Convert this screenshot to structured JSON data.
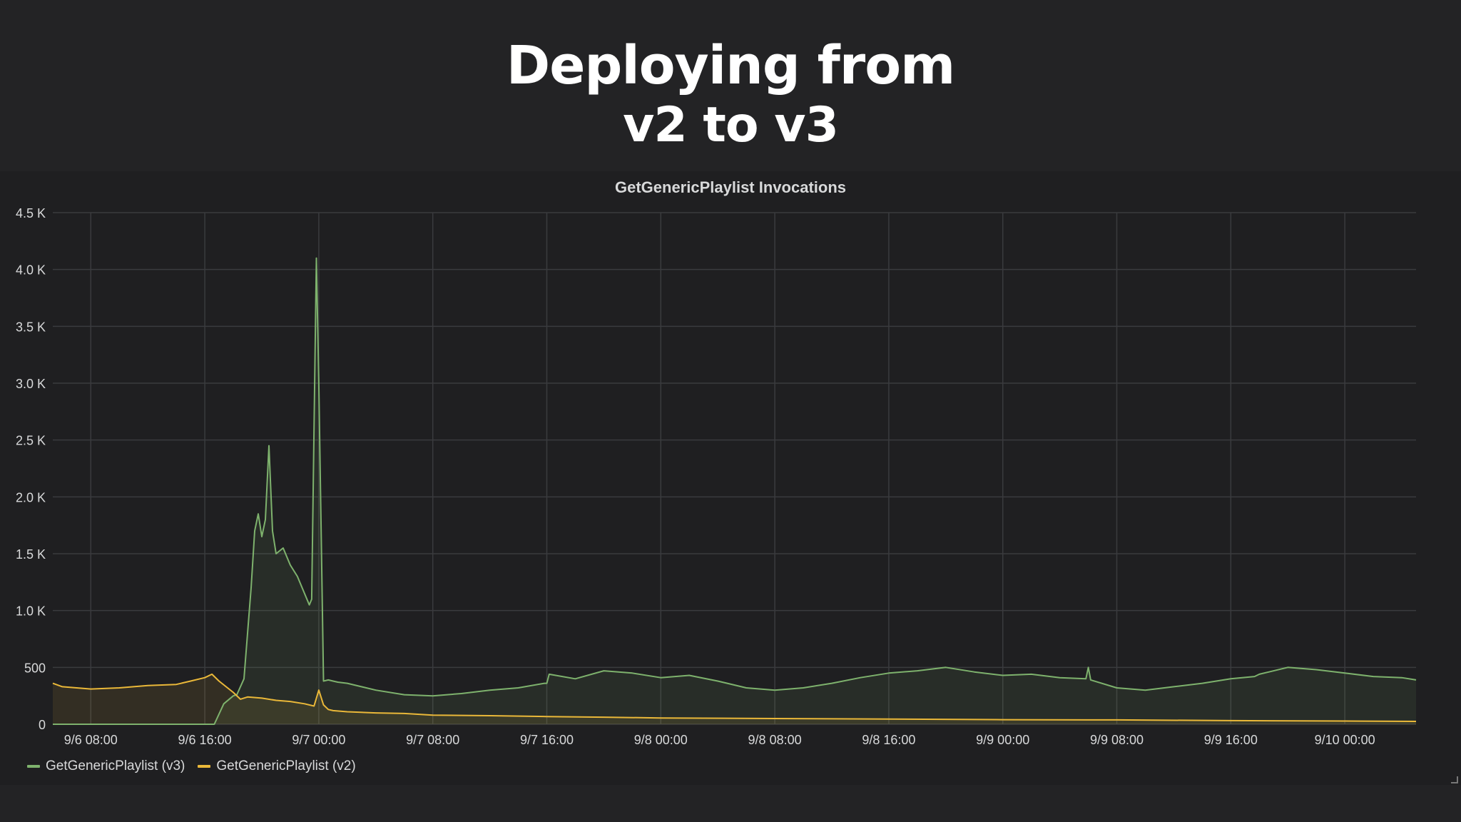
{
  "slide": {
    "title_line1": "Deploying from",
    "title_line2": "v2 to v3"
  },
  "chart_data": {
    "type": "line",
    "title": "GetGenericPlaylist Invocations",
    "xlabel": "",
    "ylabel": "",
    "ylim": [
      0,
      4500
    ],
    "xlim": [
      "9/6 05:20",
      "9/10 05:00"
    ],
    "yticks": [
      {
        "value": 0,
        "label": "0"
      },
      {
        "value": 500,
        "label": "500"
      },
      {
        "value": 1000,
        "label": "1.0 K"
      },
      {
        "value": 1500,
        "label": "1.5 K"
      },
      {
        "value": 2000,
        "label": "2.0 K"
      },
      {
        "value": 2500,
        "label": "2.5 K"
      },
      {
        "value": 3000,
        "label": "3.0 K"
      },
      {
        "value": 3500,
        "label": "3.5 K"
      },
      {
        "value": 4000,
        "label": "4.0 K"
      },
      {
        "value": 4500,
        "label": "4.5 K"
      }
    ],
    "xticks": [
      {
        "value": "9/6 08:00",
        "label": "9/6 08:00"
      },
      {
        "value": "9/6 16:00",
        "label": "9/6 16:00"
      },
      {
        "value": "9/7 00:00",
        "label": "9/7 00:00"
      },
      {
        "value": "9/7 08:00",
        "label": "9/7 08:00"
      },
      {
        "value": "9/7 16:00",
        "label": "9/7 16:00"
      },
      {
        "value": "9/8 00:00",
        "label": "9/8 00:00"
      },
      {
        "value": "9/8 08:00",
        "label": "9/8 08:00"
      },
      {
        "value": "9/8 16:00",
        "label": "9/8 16:00"
      },
      {
        "value": "9/9 00:00",
        "label": "9/9 00:00"
      },
      {
        "value": "9/9 08:00",
        "label": "9/9 08:00"
      },
      {
        "value": "9/9 16:00",
        "label": "9/9 16:00"
      },
      {
        "value": "9/10 00:00",
        "label": "9/10 00:00"
      }
    ],
    "grid": true,
    "legend_position": "bottom-left",
    "series": [
      {
        "name": "GetGenericPlaylist (v3)",
        "color": "#7eb26d",
        "x": [
          "9/6 05:20",
          "9/6 10:00",
          "9/6 16:00",
          "9/6 16:40",
          "9/6 17:20",
          "9/6 18:00",
          "9/6 18:15",
          "9/6 18:45",
          "9/6 19:15",
          "9/6 19:30",
          "9/6 19:45",
          "9/6 20:00",
          "9/6 20:15",
          "9/6 20:30",
          "9/6 20:45",
          "9/6 21:00",
          "9/6 21:30",
          "9/6 22:00",
          "9/6 22:30",
          "9/6 23:00",
          "9/6 23:20",
          "9/6 23:30",
          "9/6 23:50",
          "9/7 00:00",
          "9/7 00:20",
          "9/7 00:40",
          "9/7 01:00",
          "9/7 01:20",
          "9/7 02:00",
          "9/7 04:00",
          "9/7 06:00",
          "9/7 08:00",
          "9/7 10:00",
          "9/7 12:00",
          "9/7 14:00",
          "9/7 15:50",
          "9/7 16:00",
          "9/7 16:10",
          "9/7 18:00",
          "9/7 20:00",
          "9/7 22:00",
          "9/8 00:00",
          "9/8 02:00",
          "9/8 04:00",
          "9/8 06:00",
          "9/8 08:00",
          "9/8 10:00",
          "9/8 12:00",
          "9/8 14:00",
          "9/8 16:00",
          "9/8 18:00",
          "9/8 20:00",
          "9/8 22:00",
          "9/9 00:00",
          "9/9 02:00",
          "9/9 04:00",
          "9/9 05:50",
          "9/9 06:00",
          "9/9 06:10",
          "9/9 08:00",
          "9/9 10:00",
          "9/9 12:00",
          "9/9 14:00",
          "9/9 16:00",
          "9/9 17:40",
          "9/9 18:00",
          "9/9 20:00",
          "9/9 22:00",
          "9/10 00:00",
          "9/10 02:00",
          "9/10 04:00",
          "9/10 05:00"
        ],
        "values": [
          0,
          0,
          0,
          0,
          180,
          250,
          260,
          400,
          1200,
          1700,
          1850,
          1650,
          1800,
          2450,
          1700,
          1500,
          1550,
          1400,
          1300,
          1150,
          1050,
          1100,
          4100,
          3000,
          380,
          390,
          380,
          370,
          360,
          300,
          260,
          250,
          270,
          300,
          320,
          360,
          360,
          440,
          400,
          470,
          450,
          410,
          430,
          380,
          320,
          300,
          320,
          360,
          410,
          450,
          470,
          500,
          460,
          430,
          440,
          410,
          400,
          500,
          390,
          320,
          300,
          330,
          360,
          400,
          420,
          440,
          500,
          480,
          450,
          420,
          410,
          390
        ]
      },
      {
        "name": "GetGenericPlaylist (v2)",
        "color": "#eab839",
        "x": [
          "9/6 05:20",
          "9/6 06:00",
          "9/6 08:00",
          "9/6 10:00",
          "9/6 12:00",
          "9/6 14:00",
          "9/6 15:00",
          "9/6 16:00",
          "9/6 16:30",
          "9/6 17:00",
          "9/6 18:00",
          "9/6 18:30",
          "9/6 19:00",
          "9/6 20:00",
          "9/6 21:00",
          "9/6 22:00",
          "9/6 23:00",
          "9/6 23:40",
          "9/7 00:00",
          "9/7 00:20",
          "9/7 00:40",
          "9/7 01:00",
          "9/7 02:00",
          "9/7 04:00",
          "9/7 06:00",
          "9/7 08:00",
          "9/7 12:00",
          "9/7 16:00",
          "9/7 20:00",
          "9/8 00:00",
          "9/8 08:00",
          "9/8 16:00",
          "9/9 00:00",
          "9/9 08:00",
          "9/9 16:00",
          "9/10 00:00",
          "9/10 05:00"
        ],
        "values": [
          360,
          330,
          310,
          320,
          340,
          350,
          380,
          410,
          440,
          380,
          280,
          220,
          240,
          230,
          210,
          200,
          180,
          160,
          300,
          170,
          130,
          120,
          110,
          100,
          95,
          80,
          75,
          68,
          62,
          55,
          50,
          45,
          40,
          38,
          32,
          28,
          25
        ]
      }
    ]
  }
}
